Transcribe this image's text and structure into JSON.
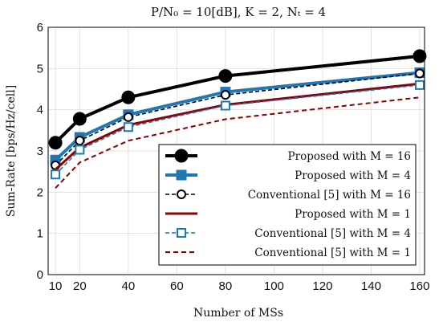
{
  "chart_data": {
    "type": "line",
    "title": "P/N₀ = 10[dB], K = 2,  Nₜ = 4",
    "xlabel": "Number of MSs",
    "ylabel": "Sum-Rate [bps/Hz/cell]",
    "x": [
      10,
      20,
      40,
      80,
      160
    ],
    "xlim": [
      7,
      162
    ],
    "ylim": [
      0,
      6
    ],
    "xticks": [
      10,
      20,
      40,
      60,
      80,
      100,
      120,
      140,
      160
    ],
    "yticks": [
      0,
      1,
      2,
      3,
      4,
      5,
      6
    ],
    "grid": true,
    "legend_position": "bottom-right",
    "series": [
      {
        "name": "Proposed with M = 16",
        "values": [
          3.2,
          3.78,
          4.3,
          4.82,
          5.3
        ],
        "color": "#000000",
        "dash": "solid",
        "marker": "filled-circle",
        "width": 4
      },
      {
        "name": "Proposed with M = 4",
        "values": [
          2.78,
          3.33,
          3.88,
          4.43,
          4.9
        ],
        "color": "#1f77b4",
        "dash": "solid",
        "marker": "filled-square",
        "width": 4
      },
      {
        "name": "Conventional [5] with M = 16",
        "values": [
          2.65,
          3.25,
          3.82,
          4.36,
          4.88
        ],
        "color": "#000000",
        "dash": "dashed",
        "marker": "open-circle",
        "width": 1.6
      },
      {
        "name": "Proposed with M = 1",
        "values": [
          2.55,
          3.08,
          3.63,
          4.12,
          4.63
        ],
        "color": "#8b0000",
        "dash": "solid",
        "marker": "none",
        "width": 3
      },
      {
        "name": "Conventional [5] with M = 4",
        "values": [
          2.43,
          3.03,
          3.58,
          4.1,
          4.6
        ],
        "color": "#1f77b4",
        "dash": "dashed",
        "marker": "open-square",
        "width": 1.6
      },
      {
        "name": "Conventional [5] with M = 1",
        "values": [
          2.1,
          2.72,
          3.25,
          3.77,
          4.3
        ],
        "color": "#8b0000",
        "dash": "dashed",
        "marker": "none",
        "width": 2
      }
    ]
  }
}
